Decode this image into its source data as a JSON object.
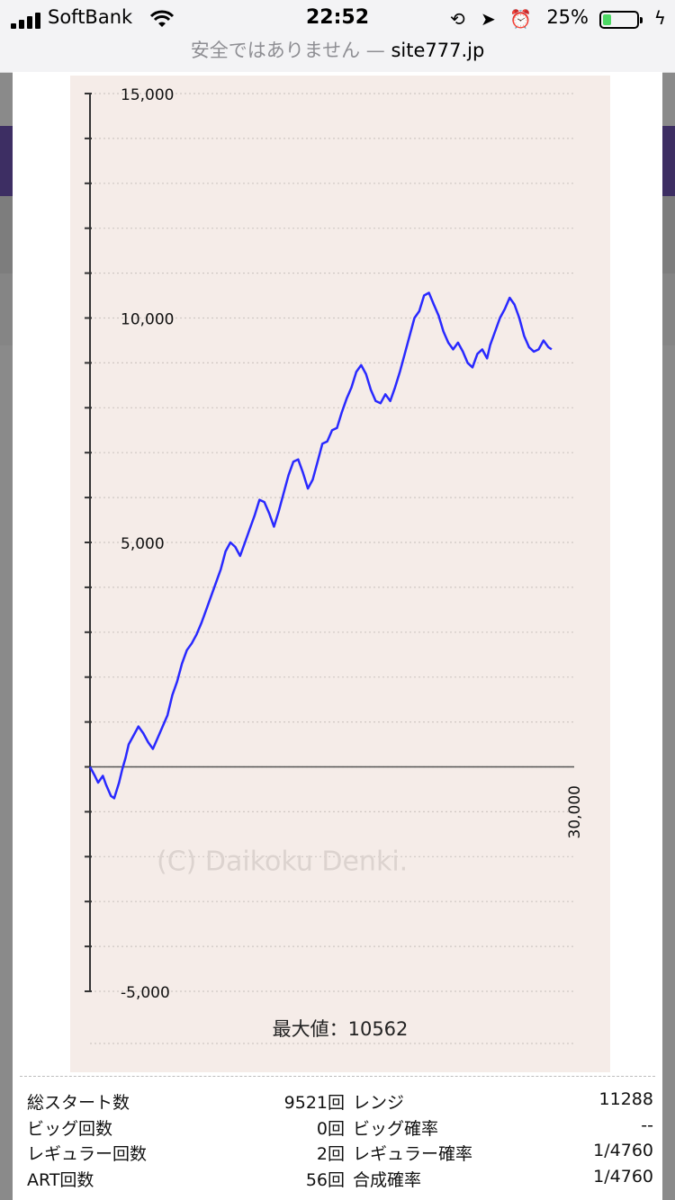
{
  "status_bar": {
    "carrier": "SoftBank",
    "time": "22:52",
    "battery_percent": "25%",
    "battery_level": 0.25,
    "battery_color": "#4cd964"
  },
  "url_bar": {
    "security_text": "安全ではありません —",
    "domain": "site777.jp"
  },
  "chart_data": {
    "type": "line",
    "title": "",
    "xlabel": "",
    "ylabel": "",
    "xlim": [
      0,
      30000
    ],
    "ylim": [
      -5000,
      15000
    ],
    "x_tick_labels": [
      "30,000"
    ],
    "y_tick_labels": [
      "15,000",
      "10,000",
      "5,000",
      "-5,000"
    ],
    "y_minor_step": 1000,
    "grid": "horizontal-dotted",
    "watermark": "(C) Daikoku Denki.",
    "max_label": "最大値：10562",
    "line_color": "#2929ff",
    "series": [
      {
        "x": [
          0,
          300,
          500,
          800,
          1000,
          1300,
          1500,
          1800,
          2000,
          2200,
          2400,
          2700,
          3000,
          3300,
          3600,
          3900,
          4200,
          4500,
          4800,
          5100,
          5400,
          5700,
          6000,
          6300,
          6600,
          6900,
          7200,
          7500,
          7800,
          8100,
          8400,
          8700,
          9000,
          9300,
          9600,
          9900,
          10200,
          10500,
          10800,
          11100,
          11400,
          11700,
          12000,
          12300,
          12600,
          12900,
          13200,
          13500,
          13800,
          14100,
          14400,
          14700,
          15000,
          15300,
          15600,
          15900,
          16200,
          16500,
          16800,
          17100,
          17400,
          17700,
          18000,
          18300,
          18600,
          18900,
          19200,
          19500,
          19800,
          20100,
          20400,
          20700,
          21000,
          21300,
          21600,
          21900,
          22200,
          22500,
          22800,
          23100,
          23400,
          23700,
          24000,
          24300,
          24600,
          24800,
          25100,
          25400,
          25700,
          26000,
          26300,
          26600,
          26900,
          27200,
          27500,
          27800,
          28100,
          28400,
          28600
        ],
        "y": [
          0,
          -200,
          -350,
          -200,
          -400,
          -650,
          -700,
          -350,
          -50,
          200,
          500,
          700,
          900,
          750,
          550,
          400,
          650,
          900,
          1150,
          1600,
          1900,
          2300,
          2600,
          2750,
          2950,
          3200,
          3500,
          3800,
          4100,
          4400,
          4800,
          5000,
          4900,
          4700,
          5000,
          5300,
          5600,
          5950,
          5900,
          5650,
          5350,
          5700,
          6100,
          6500,
          6800,
          6850,
          6550,
          6200,
          6400,
          6800,
          7200,
          7250,
          7500,
          7550,
          7900,
          8200,
          8450,
          8800,
          8950,
          8750,
          8400,
          8150,
          8100,
          8300,
          8150,
          8450,
          8800,
          9200,
          9600,
          10000,
          10150,
          10500,
          10562,
          10300,
          10050,
          9700,
          9450,
          9300,
          9450,
          9250,
          9000,
          8900,
          9200,
          9300,
          9100,
          9400,
          9700,
          10000,
          10200,
          10450,
          10300,
          10000,
          9600,
          9350,
          9250,
          9300,
          9500,
          9350,
          9300
        ]
      }
    ]
  },
  "stats": [
    {
      "label": "総スタート数",
      "value": "9521回",
      "label2": "レンジ",
      "value2": "11288"
    },
    {
      "label": "ビッグ回数",
      "value": "0回",
      "label2": "ビッグ確率",
      "value2": "--"
    },
    {
      "label": "レギュラー回数",
      "value": "2回",
      "label2": "レギュラー確率",
      "value2": "1/4760"
    },
    {
      "label": "ART回数",
      "value": "56回",
      "label2": "合成確率",
      "value2": "1/4760"
    }
  ]
}
